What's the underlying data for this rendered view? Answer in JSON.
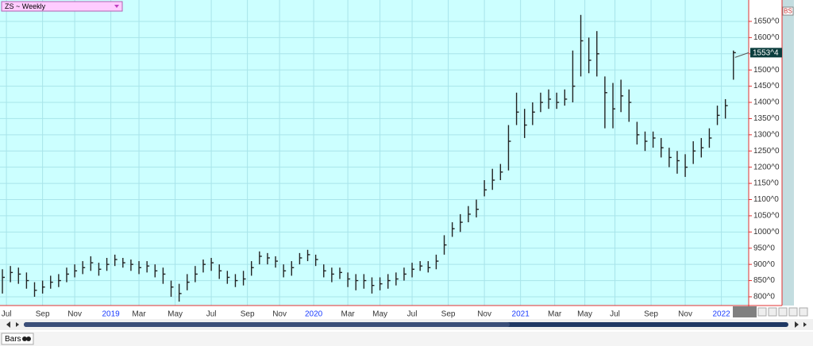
{
  "chart_data": {
    "type": "ohlc",
    "title": "ZS ~ Weekly",
    "badge": "BS",
    "mode": "Bars",
    "color": "#222222",
    "grid": true,
    "xlim": [
      -0.6,
      185.8
    ],
    "ylim": [
      773,
      1716
    ],
    "xticks": [
      {
        "value": 1,
        "label": "Jul"
      },
      {
        "value": 10,
        "label": "Sep"
      },
      {
        "value": 18,
        "label": "Nov"
      },
      {
        "value": 27,
        "label": "2019"
      },
      {
        "value": 34,
        "label": "Mar"
      },
      {
        "value": 43,
        "label": "May"
      },
      {
        "value": 52,
        "label": "Jul"
      },
      {
        "value": 61,
        "label": "Sep"
      },
      {
        "value": 69,
        "label": "Nov"
      },
      {
        "value": 77.5,
        "label": "2020"
      },
      {
        "value": 86,
        "label": "Mar"
      },
      {
        "value": 94,
        "label": "May"
      },
      {
        "value": 102,
        "label": "Jul"
      },
      {
        "value": 111,
        "label": "Sep"
      },
      {
        "value": 120,
        "label": "Nov"
      },
      {
        "value": 129,
        "label": "2021"
      },
      {
        "value": 137.5,
        "label": "Mar"
      },
      {
        "value": 145,
        "label": "May"
      },
      {
        "value": 152.5,
        "label": "Jul"
      },
      {
        "value": 161.5,
        "label": "Sep"
      },
      {
        "value": 170,
        "label": "Nov"
      },
      {
        "value": 179,
        "label": "2022"
      }
    ],
    "yticks": [
      {
        "value": 800,
        "label": "800^0"
      },
      {
        "value": 850,
        "label": "850^0"
      },
      {
        "value": 900,
        "label": "900^0"
      },
      {
        "value": 950,
        "label": "950^0"
      },
      {
        "value": 1000,
        "label": "1000^0"
      },
      {
        "value": 1050,
        "label": "1050^0"
      },
      {
        "value": 1100,
        "label": "1100^0"
      },
      {
        "value": 1150,
        "label": "1150^0"
      },
      {
        "value": 1200,
        "label": "1200^0"
      },
      {
        "value": 1250,
        "label": "1250^0"
      },
      {
        "value": 1300,
        "label": "1300^0"
      },
      {
        "value": 1350,
        "label": "1350^0"
      },
      {
        "value": 1400,
        "label": "1400^0"
      },
      {
        "value": 1450,
        "label": "1450^0"
      },
      {
        "value": 1500,
        "label": "1500^0"
      },
      {
        "value": 1550,
        "label": "1550^0"
      },
      {
        "value": 1600,
        "label": "1600^0"
      },
      {
        "value": 1650,
        "label": "1650^0"
      }
    ],
    "last": {
      "value": 1553.5,
      "label": "1553^4"
    },
    "x": [
      0,
      2,
      4,
      6,
      8,
      10,
      12,
      14,
      16,
      18,
      20,
      22,
      24,
      26,
      28,
      30,
      32,
      34,
      36,
      38,
      40,
      42,
      44,
      46,
      48,
      50,
      52,
      54,
      56,
      58,
      60,
      62,
      64,
      66,
      68,
      70,
      72,
      74,
      76,
      78,
      80,
      82,
      84,
      86,
      88,
      90,
      92,
      94,
      96,
      98,
      100,
      102,
      104,
      106,
      108,
      110,
      112,
      114,
      116,
      118,
      120,
      122,
      124,
      126,
      128,
      130,
      132,
      134,
      136,
      138,
      140,
      142,
      144,
      146,
      148,
      150,
      152,
      154,
      156,
      158,
      160,
      162,
      164,
      166,
      168,
      170,
      172,
      174,
      176,
      178,
      180,
      182
    ],
    "high": [
      885,
      895,
      890,
      875,
      845,
      850,
      865,
      870,
      890,
      900,
      910,
      925,
      905,
      920,
      930,
      920,
      915,
      910,
      910,
      900,
      890,
      850,
      840,
      870,
      895,
      915,
      920,
      900,
      880,
      870,
      880,
      910,
      940,
      935,
      925,
      900,
      910,
      935,
      945,
      930,
      900,
      890,
      890,
      875,
      870,
      870,
      860,
      860,
      870,
      875,
      890,
      905,
      910,
      910,
      930,
      990,
      1030,
      1055,
      1080,
      1100,
      1160,
      1195,
      1210,
      1330,
      1430,
      1380,
      1400,
      1430,
      1440,
      1430,
      1440,
      1560,
      1670,
      1600,
      1620,
      1480,
      1460,
      1470,
      1440,
      1340,
      1310,
      1310,
      1290,
      1260,
      1250,
      1240,
      1280,
      1290,
      1320,
      1390,
      1410,
      1560
    ],
    "low": [
      810,
      845,
      840,
      825,
      800,
      810,
      825,
      830,
      845,
      860,
      870,
      880,
      865,
      880,
      895,
      890,
      880,
      870,
      875,
      860,
      840,
      800,
      785,
      820,
      845,
      875,
      880,
      855,
      840,
      830,
      835,
      865,
      900,
      900,
      890,
      860,
      865,
      900,
      910,
      895,
      860,
      845,
      855,
      830,
      820,
      825,
      810,
      820,
      825,
      835,
      850,
      860,
      880,
      875,
      885,
      930,
      985,
      1000,
      1030,
      1045,
      1110,
      1130,
      1160,
      1190,
      1330,
      1290,
      1330,
      1370,
      1380,
      1380,
      1390,
      1400,
      1480,
      1490,
      1480,
      1320,
      1320,
      1370,
      1340,
      1270,
      1250,
      1260,
      1230,
      1200,
      1180,
      1170,
      1210,
      1230,
      1260,
      1330,
      1350,
      1470
    ],
    "close": [
      860,
      875,
      870,
      850,
      820,
      830,
      845,
      850,
      870,
      880,
      890,
      905,
      885,
      900,
      915,
      905,
      900,
      890,
      895,
      880,
      870,
      830,
      810,
      845,
      870,
      900,
      905,
      880,
      860,
      850,
      855,
      890,
      925,
      920,
      910,
      880,
      890,
      920,
      930,
      915,
      880,
      870,
      875,
      855,
      850,
      850,
      835,
      840,
      850,
      855,
      870,
      885,
      895,
      890,
      910,
      960,
      1010,
      1030,
      1055,
      1070,
      1130,
      1160,
      1185,
      1280,
      1370,
      1330,
      1370,
      1400,
      1410,
      1400,
      1410,
      1450,
      1590,
      1530,
      1550,
      1430,
      1380,
      1420,
      1400,
      1300,
      1280,
      1290,
      1260,
      1230,
      1220,
      1200,
      1250,
      1260,
      1290,
      1360,
      1390,
      1553.5
    ]
  }
}
